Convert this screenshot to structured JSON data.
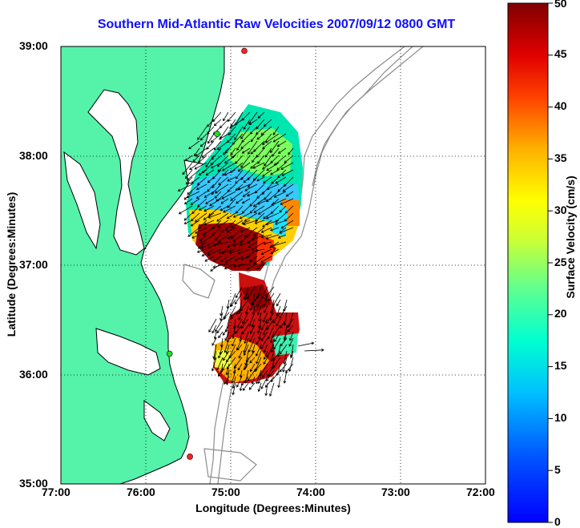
{
  "title": "Southern Mid-Atlantic Raw Velocities 2007/09/12 0800 GMT",
  "axes": {
    "xlabel": "Longitude (Degrees:Minutes)",
    "ylabel": "Latitude (Degrees:Minutes)",
    "x_ticks": [
      "77:00",
      "76:00",
      "75:00",
      "74:00",
      "73:00",
      "72:00"
    ],
    "y_ticks": [
      "35:00",
      "36:00",
      "37:00",
      "38:00",
      "39:00"
    ],
    "xlim_deg_west": [
      77,
      72
    ],
    "ylim_deg_north": [
      35,
      39
    ],
    "grid": "dotted"
  },
  "colorbar": {
    "label": "Surface Velocity (cm/s)",
    "ticks": [
      "0",
      "5",
      "10",
      "15",
      "20",
      "25",
      "30",
      "35",
      "40",
      "45",
      "50"
    ],
    "range": [
      0,
      50
    ],
    "colormap": "jet",
    "placement": "right"
  },
  "colors": {
    "land": "#55f2aa",
    "title": "#1010ff",
    "bathymetry": "#8c8c8c",
    "coastline": "#000000",
    "radar_sites": "#ff2020",
    "radar_sites_alt": "#22dd22"
  },
  "radar_sites": [
    {
      "lon": -74.84,
      "lat": 38.96,
      "color": "red"
    },
    {
      "lon": -75.16,
      "lat": 38.2,
      "color": "green"
    },
    {
      "lon": -75.72,
      "lat": 36.19,
      "color": "green"
    },
    {
      "lon": -75.48,
      "lat": 35.25,
      "color": "red"
    }
  ]
}
